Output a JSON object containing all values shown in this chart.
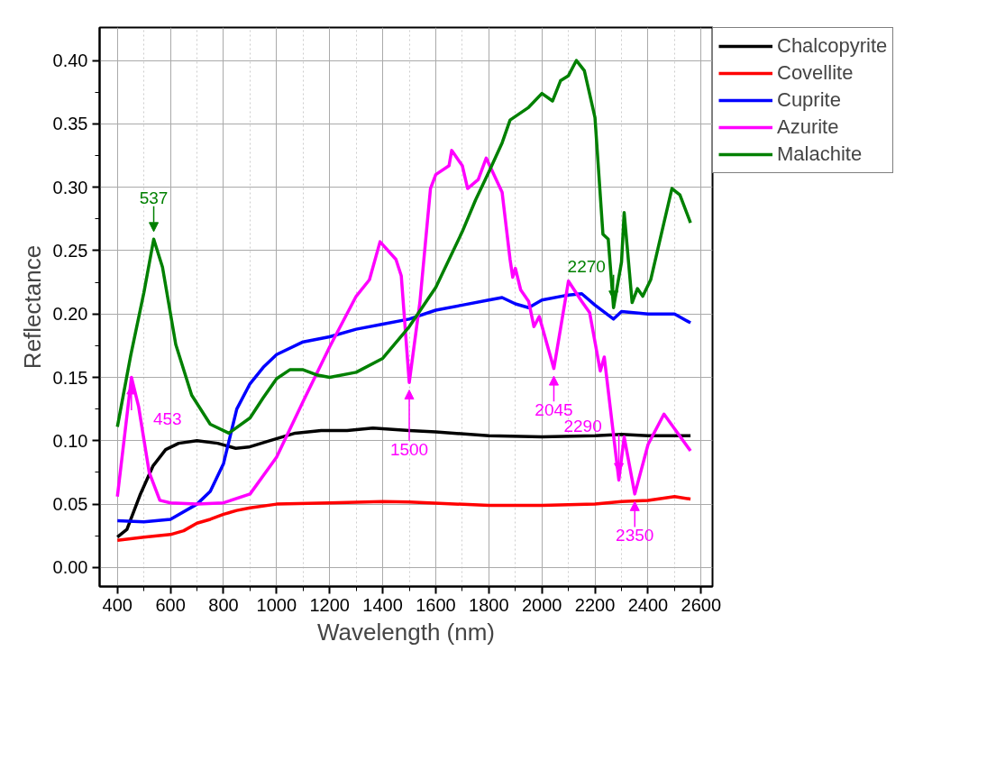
{
  "chart_data": {
    "type": "line",
    "xlabel": "Wavelength (nm)",
    "ylabel": "Reflectance",
    "xlim": [
      333,
      2643
    ],
    "ylim": [
      -0.015,
      0.426
    ],
    "xticks": [
      400,
      600,
      800,
      1000,
      1200,
      1400,
      1600,
      1800,
      2000,
      2200,
      2400,
      2600
    ],
    "yticks": [
      {
        "value": 0,
        "label": "0.00"
      },
      0.05,
      {
        "value": 0.1,
        "label": "0.10"
      },
      0.15,
      {
        "value": 0.2,
        "label": "0.20"
      },
      0.25,
      {
        "value": 0.3,
        "label": "0.30"
      },
      0.35,
      {
        "value": 0.4,
        "label": "0.40"
      }
    ],
    "grid": true,
    "legend": "top right",
    "marker": "none",
    "line_style": "solid",
    "series": [
      {
        "name": "Chalcopyrite",
        "color": "#000000",
        "x": [
          400,
          436,
          485,
          534,
          582,
          631,
          700,
          778,
          846,
          895,
          973,
          1070,
          1168,
          1266,
          1363,
          1500,
          1600,
          1800,
          2000,
          2200,
          2300,
          2400,
          2560
        ],
        "values": [
          0.024,
          0.03,
          0.057,
          0.08,
          0.093,
          0.098,
          0.1,
          0.098,
          0.094,
          0.095,
          0.1,
          0.106,
          0.108,
          0.108,
          0.11,
          0.108,
          0.107,
          0.104,
          0.103,
          0.104,
          0.105,
          0.104,
          0.104
        ]
      },
      {
        "name": "Covellite",
        "color": "#ff0000",
        "x": [
          400,
          500,
          600,
          650,
          700,
          750,
          800,
          850,
          900,
          1000,
          1200,
          1400,
          1500,
          1800,
          2000,
          2200,
          2300,
          2400,
          2500,
          2560
        ],
        "values": [
          0.0215,
          0.024,
          0.026,
          0.029,
          0.035,
          0.038,
          0.042,
          0.045,
          0.047,
          0.05,
          0.051,
          0.052,
          0.0517,
          0.049,
          0.049,
          0.05,
          0.052,
          0.053,
          0.056,
          0.054
        ]
      },
      {
        "name": "Cuprite",
        "color": "#0000ff",
        "x": [
          400,
          500,
          600,
          700,
          750,
          800,
          850,
          900,
          950,
          1000,
          1100,
          1200,
          1300,
          1400,
          1500,
          1600,
          1700,
          1800,
          1850,
          1900,
          1950,
          2000,
          2100,
          2150,
          2200,
          2270,
          2300,
          2400,
          2500,
          2560
        ],
        "values": [
          0.037,
          0.036,
          0.038,
          0.05,
          0.06,
          0.082,
          0.125,
          0.145,
          0.158,
          0.168,
          0.178,
          0.182,
          0.188,
          0.192,
          0.196,
          0.203,
          0.207,
          0.211,
          0.213,
          0.208,
          0.205,
          0.211,
          0.215,
          0.216,
          0.207,
          0.196,
          0.202,
          0.2,
          0.2,
          0.193
        ]
      },
      {
        "name": "Azurite",
        "color": "#ff00ff",
        "x": [
          400,
          430,
          453,
          480,
          520,
          560,
          600,
          700,
          800,
          900,
          1000,
          1100,
          1200,
          1300,
          1350,
          1390,
          1450,
          1470,
          1500,
          1540,
          1560,
          1580,
          1600,
          1650,
          1660,
          1700,
          1720,
          1760,
          1790,
          1850,
          1880,
          1890,
          1900,
          1920,
          1950,
          1970,
          1990,
          2045,
          2100,
          2150,
          2180,
          2220,
          2235,
          2290,
          2310,
          2350,
          2400,
          2460,
          2560
        ],
        "values": [
          0.056,
          0.109,
          0.15,
          0.127,
          0.075,
          0.053,
          0.051,
          0.05,
          0.051,
          0.058,
          0.087,
          0.131,
          0.174,
          0.214,
          0.227,
          0.257,
          0.243,
          0.23,
          0.146,
          0.209,
          0.254,
          0.299,
          0.31,
          0.317,
          0.329,
          0.317,
          0.299,
          0.306,
          0.323,
          0.296,
          0.243,
          0.229,
          0.236,
          0.219,
          0.21,
          0.19,
          0.198,
          0.157,
          0.226,
          0.21,
          0.201,
          0.155,
          0.166,
          0.069,
          0.103,
          0.058,
          0.097,
          0.121,
          0.092
        ]
      },
      {
        "name": "Malachite",
        "color": "#008000",
        "x": [
          400,
          450,
          500,
          537,
          570,
          620,
          680,
          750,
          820,
          900,
          950,
          1000,
          1050,
          1100,
          1150,
          1200,
          1300,
          1400,
          1500,
          1600,
          1700,
          1750,
          1800,
          1850,
          1880,
          1950,
          2000,
          2040,
          2070,
          2100,
          2130,
          2160,
          2200,
          2230,
          2250,
          2270,
          2300,
          2310,
          2340,
          2360,
          2380,
          2410,
          2490,
          2520,
          2560
        ],
        "values": [
          0.111,
          0.167,
          0.217,
          0.259,
          0.237,
          0.176,
          0.136,
          0.113,
          0.106,
          0.118,
          0.134,
          0.149,
          0.156,
          0.156,
          0.152,
          0.15,
          0.154,
          0.165,
          0.19,
          0.221,
          0.265,
          0.29,
          0.312,
          0.335,
          0.353,
          0.363,
          0.374,
          0.368,
          0.384,
          0.388,
          0.4,
          0.392,
          0.355,
          0.263,
          0.259,
          0.205,
          0.241,
          0.28,
          0.209,
          0.22,
          0.214,
          0.227,
          0.299,
          0.294,
          0.272
        ]
      }
    ],
    "annotations": [
      {
        "text": "453",
        "x": 453,
        "y": 0.15
      },
      {
        "text": "537",
        "x": 537,
        "y": 0.259
      },
      {
        "text": "1500",
        "x": 1500,
        "y": 0.146
      },
      {
        "text": "2045",
        "x": 2045,
        "y": 0.157
      },
      {
        "text": "2270",
        "x": 2270,
        "y": 0.205
      },
      {
        "text": "2290",
        "x": 2290,
        "y": 0.069
      },
      {
        "text": "2350",
        "x": 2350,
        "y": 0.058
      }
    ]
  }
}
